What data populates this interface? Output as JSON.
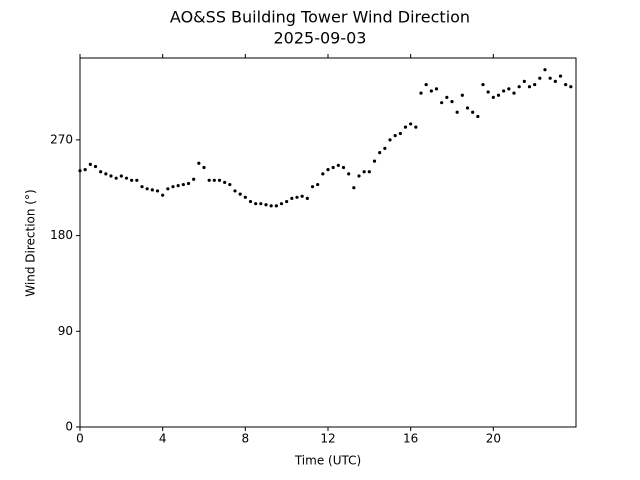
{
  "chart_data": {
    "type": "scatter",
    "title": "AO&SS Building Tower Wind Direction",
    "subtitle": "2025-09-03",
    "x_label": "Time (UTC)",
    "y_label": "Wind Direction (°)",
    "color": "#000000",
    "x": [
      0,
      0.25,
      0.5,
      0.75,
      1,
      1.25,
      1.5,
      1.75,
      2,
      2.25,
      2.5,
      2.75,
      3,
      3.25,
      3.5,
      3.75,
      4,
      4.25,
      4.5,
      4.75,
      5,
      5.25,
      5.5,
      5.75,
      6,
      6.25,
      6.5,
      6.75,
      7,
      7.25,
      7.5,
      7.75,
      8,
      8.25,
      8.5,
      8.75,
      9,
      9.25,
      9.5,
      9.75,
      10,
      10.25,
      10.5,
      10.75,
      11,
      11.25,
      11.5,
      11.75,
      12,
      12.25,
      12.5,
      12.75,
      13,
      13.25,
      13.5,
      13.75,
      14,
      14.25,
      14.5,
      14.75,
      15,
      15.25,
      15.5,
      15.75,
      16,
      16.25,
      16.5,
      16.75,
      17,
      17.25,
      17.5,
      17.75,
      18,
      18.25,
      18.5,
      18.75,
      19,
      19.25,
      19.5,
      19.75,
      20,
      20.25,
      20.5,
      20.75,
      21,
      21.25,
      21.5,
      21.75,
      22,
      22.25,
      22.5,
      22.75,
      23,
      23.25,
      23.5,
      23.75
    ],
    "values": [
      241,
      242,
      247,
      245,
      240,
      238,
      236,
      234,
      236,
      234,
      232,
      232,
      226,
      224,
      223,
      222,
      218,
      224,
      226,
      227,
      228,
      229,
      233,
      248,
      244,
      232,
      232,
      232,
      230,
      228,
      222,
      219,
      216,
      212,
      210,
      210,
      209,
      208,
      208,
      210,
      212,
      215,
      216,
      217,
      215,
      226,
      228,
      238,
      242,
      244,
      246,
      244,
      238,
      225,
      236,
      240,
      240,
      250,
      258,
      262,
      270,
      274,
      276,
      282,
      285,
      282,
      314,
      322,
      316,
      318,
      305,
      310,
      306,
      296,
      312,
      300,
      296,
      292,
      322,
      315,
      310,
      312,
      316,
      318,
      314,
      320,
      325,
      320,
      322,
      328,
      336,
      328,
      325,
      330,
      322,
      320
    ],
    "xlim": [
      0,
      24
    ],
    "ylim": [
      0,
      347
    ],
    "xticks": [
      0,
      4,
      8,
      12,
      16,
      20
    ],
    "yticks": [
      0,
      90,
      180,
      270
    ]
  }
}
